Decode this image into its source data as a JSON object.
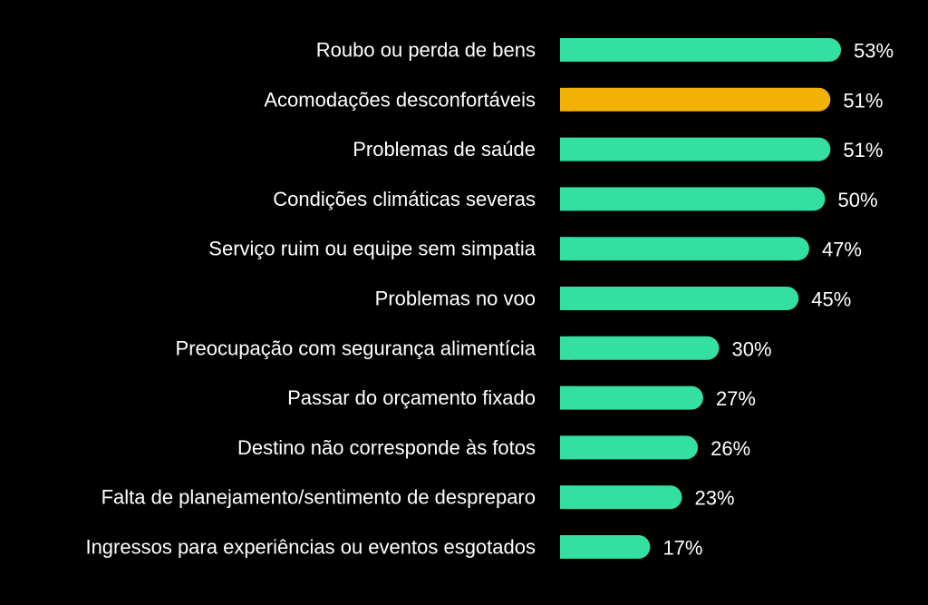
{
  "chart_data": {
    "type": "bar",
    "orientation": "horizontal",
    "categories": [
      "Roubo ou perda de bens",
      "Acomodações desconfortáveis",
      "Problemas de saúde",
      "Condições climáticas severas",
      "Serviço ruim ou equipe sem simpatia",
      "Problemas no voo",
      "Preocupação com segurança alimentícia",
      "Passar do orçamento fixado",
      "Destino não corresponde às fotos",
      "Falta de planejamento/sentimento de despreparo",
      "Ingressos para experiências ou eventos esgotados"
    ],
    "values": [
      53,
      51,
      51,
      50,
      47,
      45,
      30,
      27,
      26,
      23,
      17
    ],
    "value_labels": [
      "53%",
      "51%",
      "51%",
      "50%",
      "47%",
      "45%",
      "30%",
      "27%",
      "26%",
      "23%",
      "17%"
    ],
    "unit": "%",
    "highlight_index": 1,
    "colors": {
      "bar": "#34E0A1",
      "highlight": "#F2B203",
      "background": "#000000",
      "text": "#FFFFFF"
    },
    "grid": false,
    "legend": "none"
  }
}
